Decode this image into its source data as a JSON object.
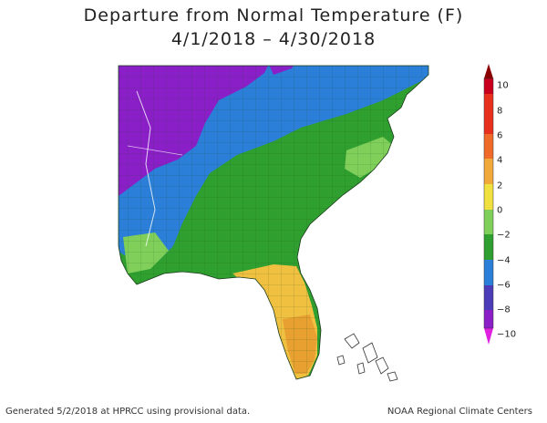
{
  "title": {
    "line1": "Departure from Normal Temperature (F)",
    "line2": "4/1/2018 – 4/30/2018"
  },
  "legend": {
    "labels": [
      "10",
      "8",
      "6",
      "4",
      "2",
      "0",
      "−2",
      "−4",
      "−6",
      "−8",
      "−10"
    ],
    "colors": [
      "#8b0000",
      "#c8001e",
      "#e8301e",
      "#f06a2a",
      "#f0a83a",
      "#f0e040",
      "#7fcf5a",
      "#2f9f2f",
      "#2b7fd8",
      "#4d3cb8",
      "#8a1fc8",
      "#e020e0"
    ]
  },
  "footer": {
    "left": "Generated 5/2/2018 at HPRCC using provisional data.",
    "right": "NOAA Regional Climate Centers"
  },
  "regions": [
    {
      "name": "northwest-purple",
      "color": "#8a1fc8",
      "value": "-8 to -10"
    },
    {
      "name": "northern-blue",
      "color": "#2b7fd8",
      "value": "-4 to -6"
    },
    {
      "name": "southeast-green",
      "color": "#2f9f2f",
      "value": "-2 to -4"
    },
    {
      "name": "coastal-lightgreen",
      "color": "#7fcf5a",
      "value": "0 to -2"
    },
    {
      "name": "florida-yellow",
      "color": "#f0c040",
      "value": "0 to 2"
    },
    {
      "name": "florida-orange",
      "color": "#e8a030",
      "value": "2 to 4"
    }
  ]
}
